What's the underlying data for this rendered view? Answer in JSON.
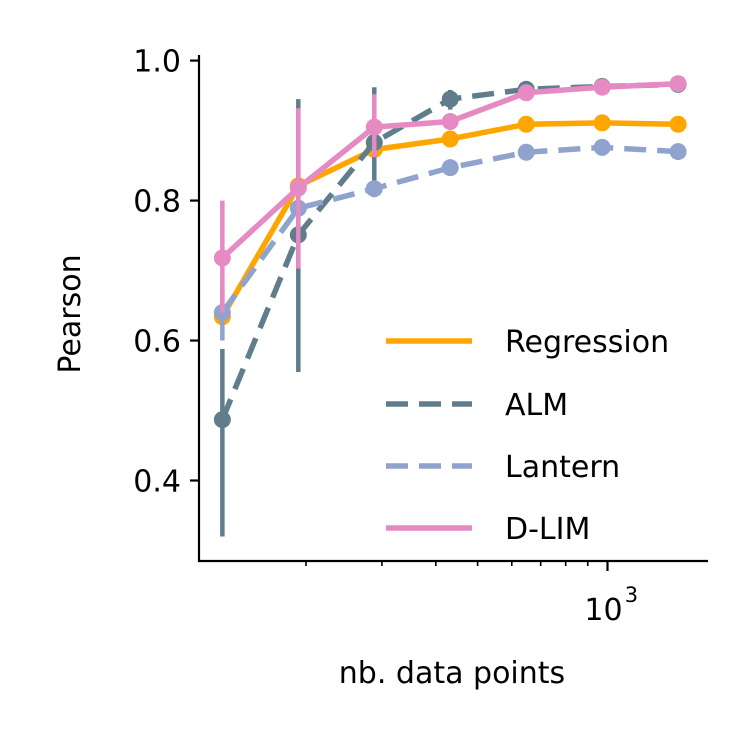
{
  "chart_data": {
    "type": "line",
    "xlabel": "nb. data points",
    "ylabel": "Pearson",
    "x_scale": "log",
    "xlim": [
      113,
      1710
    ],
    "ylim": [
      0.285,
      1.008
    ],
    "y_ticks": [
      0.4,
      0.6,
      0.8,
      1.0
    ],
    "y_tick_labels": [
      "0.4",
      "0.6",
      "0.8",
      "1.0"
    ],
    "x_ticks": [
      1000
    ],
    "x_tick_labels": [
      "10",
      "3"
    ],
    "x": [
      128,
      192,
      288,
      432,
      648,
      972,
      1458
    ],
    "grid": false,
    "legend_position": "lower right",
    "series": [
      {
        "name": "Regression",
        "color": "#FFA500",
        "dash": "solid",
        "values": [
          0.634,
          0.821,
          0.873,
          0.888,
          0.909,
          0.911,
          0.909
        ],
        "err_low": [
          null,
          null,
          null,
          null,
          null,
          null,
          null
        ],
        "err_high": [
          null,
          null,
          null,
          null,
          null,
          null,
          null
        ]
      },
      {
        "name": "ALM",
        "color": "#607D8B",
        "dash": "dashed",
        "values": [
          0.487,
          0.751,
          0.883,
          0.945,
          0.959,
          0.963,
          0.966
        ],
        "err_low": [
          0.32,
          0.555,
          0.805,
          0.93,
          null,
          null,
          null
        ],
        "err_high": [
          0.588,
          0.945,
          0.962,
          0.958,
          null,
          null,
          null
        ]
      },
      {
        "name": "Lantern",
        "color": "#8FA3CC",
        "dash": "dashed",
        "values": [
          0.64,
          0.789,
          0.817,
          0.847,
          0.869,
          0.876,
          0.87
        ],
        "err_low": [
          0.6,
          null,
          null,
          null,
          null,
          null,
          null
        ],
        "err_high": [
          0.678,
          null,
          null,
          null,
          null,
          null,
          null
        ]
      },
      {
        "name": "D-LIM",
        "color": "#E68AC3",
        "dash": "solid",
        "values": [
          0.718,
          0.818,
          0.905,
          0.913,
          0.954,
          0.962,
          0.967
        ],
        "err_low": [
          0.64,
          0.703,
          0.862,
          null,
          null,
          null,
          null
        ],
        "err_high": [
          0.8,
          0.932,
          0.952,
          null,
          null,
          null,
          null
        ]
      }
    ]
  }
}
